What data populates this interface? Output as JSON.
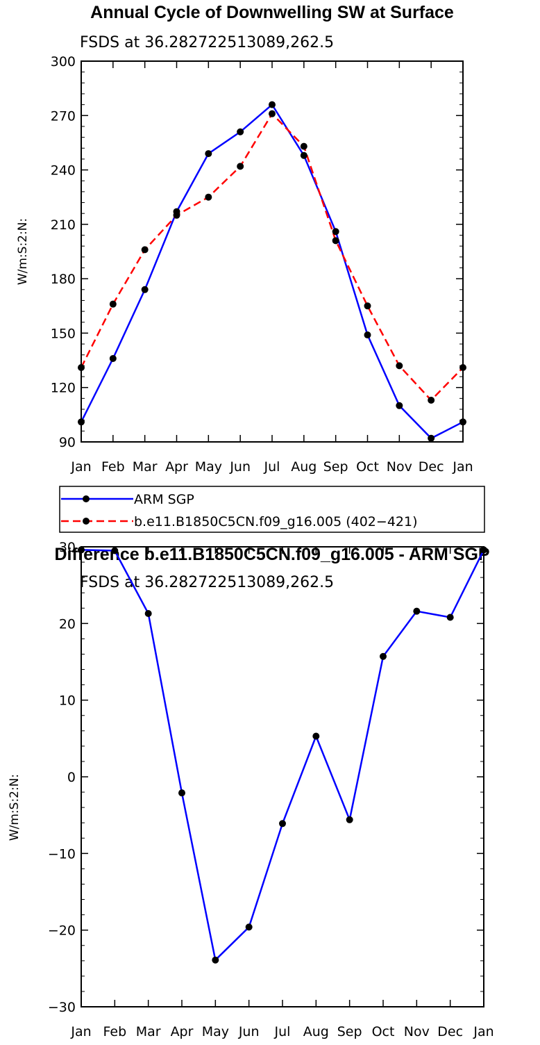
{
  "chart_data": [
    {
      "type": "line",
      "title": "Annual Cycle of Downwelling SW at Surface",
      "subtitle": "FSDS at 36.282722513089,262.5",
      "xlabel": "",
      "ylabel": "W/m:S:2:N:",
      "categories": [
        "Jan",
        "Feb",
        "Mar",
        "Apr",
        "May",
        "Jun",
        "Jul",
        "Aug",
        "Sep",
        "Oct",
        "Nov",
        "Dec",
        "Jan"
      ],
      "ylim": [
        90,
        300
      ],
      "yticks": [
        90,
        120,
        150,
        180,
        210,
        240,
        270,
        300
      ],
      "series": [
        {
          "name": "ARM SGP",
          "color": "#0000ff",
          "dashed": false,
          "values": [
            101,
            136,
            174,
            217,
            249,
            261,
            276,
            248,
            206,
            149,
            110,
            92,
            101
          ]
        },
        {
          "name": "b.e11.B1850C5CN.f09_g16.005 (402−421)",
          "color": "#ff0000",
          "dashed": true,
          "values": [
            131,
            166,
            196,
            215,
            225,
            242,
            271,
            253,
            201,
            165,
            132,
            113,
            131
          ]
        }
      ]
    },
    {
      "type": "line",
      "title": "Difference b.e11.B1850C5CN.f09_g16.005 - ARM SGP",
      "subtitle": "FSDS at 36.282722513089,262.5",
      "xlabel": "",
      "ylabel": "W/m:S:2:N:",
      "categories": [
        "Jan",
        "Feb",
        "Mar",
        "Apr",
        "May",
        "Jun",
        "Jul",
        "Aug",
        "Sep",
        "Oct",
        "Nov",
        "Dec",
        "Jan"
      ],
      "ylim": [
        -30,
        30
      ],
      "yticks": [
        -30,
        -20,
        -10,
        0,
        10,
        20,
        30
      ],
      "series": [
        {
          "name": "",
          "color": "#0000ff",
          "dashed": false,
          "values": [
            29.6,
            29.5,
            21.3,
            -2.1,
            -23.9,
            -19.6,
            -6.1,
            5.3,
            -5.6,
            15.7,
            21.6,
            20.8,
            29.6
          ]
        }
      ]
    }
  ]
}
